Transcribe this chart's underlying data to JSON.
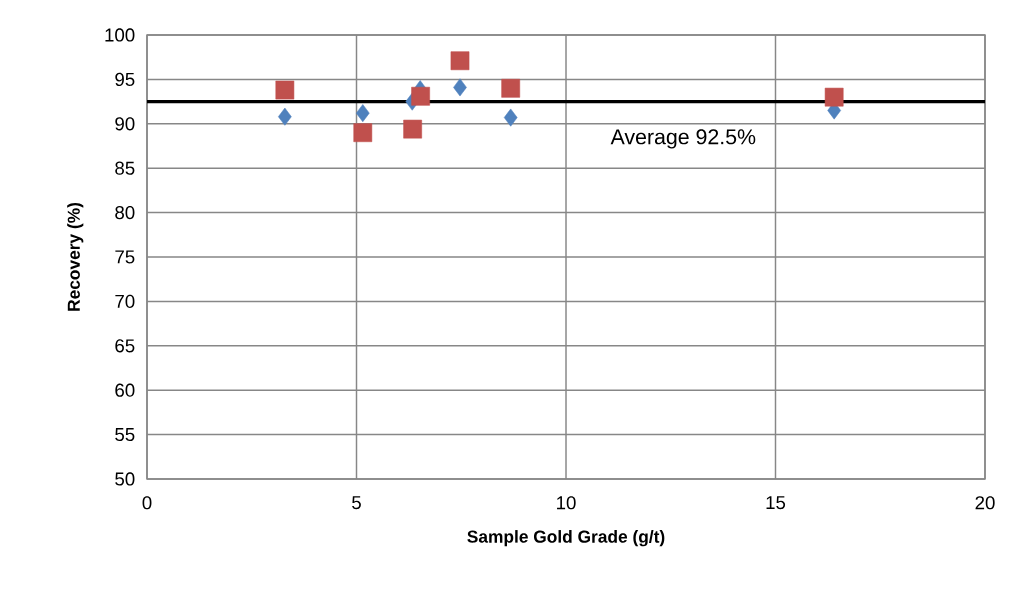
{
  "chart_data": {
    "type": "scatter",
    "xlabel": "Sample Gold Grade  (g/t)",
    "ylabel": "Recovery (%)",
    "xlim": [
      0,
      20
    ],
    "xticks": [
      0,
      5,
      10,
      15,
      20
    ],
    "ylim": [
      50,
      100
    ],
    "yticks": [
      50,
      55,
      60,
      65,
      70,
      75,
      80,
      85,
      90,
      95,
      100
    ],
    "grid": true,
    "series": [
      {
        "color": "#4f81bd",
        "marker": "diamond",
        "x": [
          3.29,
          5.15,
          6.33,
          6.52,
          7.47,
          8.68,
          16.4
        ],
        "values": [
          90.8,
          91.2,
          92.5,
          93.9,
          94.1,
          90.7,
          91.5
        ]
      },
      {
        "color": "#c0504d",
        "marker": "square",
        "x": [
          3.29,
          5.15,
          6.34,
          6.53,
          7.47,
          8.68,
          16.4
        ],
        "values": [
          93.8,
          89.0,
          89.4,
          93.1,
          97.1,
          94.0,
          93.0
        ]
      }
    ],
    "ref_lines": [
      {
        "axis": "y",
        "value": 92.5,
        "label": "Average 92.5%",
        "color": "#000000",
        "line_style": "solid"
      }
    ]
  }
}
